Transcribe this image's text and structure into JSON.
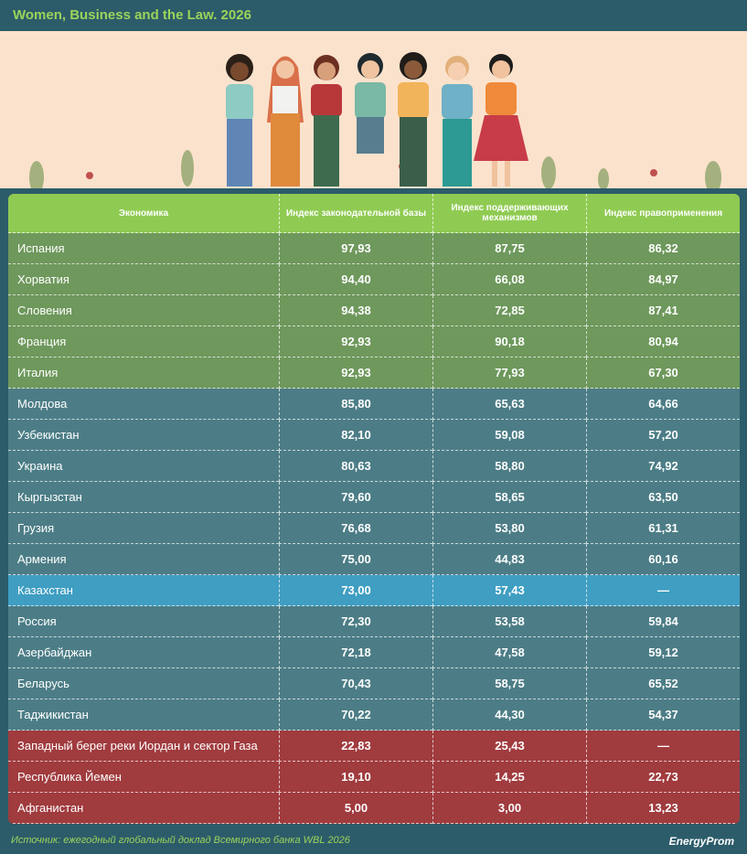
{
  "header": {
    "title": "Women, Business and the Law. 2026"
  },
  "table": {
    "columns": [
      "Экономика",
      "Индекс законодательной базы",
      "Индекс поддерживающих механизмов",
      "Индекс правоприменения"
    ],
    "header_color": "#8fcb52",
    "rows": [
      {
        "color": "#6e985c",
        "cells": [
          "Испания",
          "97,93",
          "87,75",
          "86,32"
        ]
      },
      {
        "color": "#6e985c",
        "cells": [
          "Хорватия",
          "94,40",
          "66,08",
          "84,97"
        ]
      },
      {
        "color": "#6e985c",
        "cells": [
          "Словения",
          "94,38",
          "72,85",
          "87,41"
        ]
      },
      {
        "color": "#6e985c",
        "cells": [
          "Франция",
          "92,93",
          "90,18",
          "80,94"
        ]
      },
      {
        "color": "#6e985c",
        "cells": [
          "Италия",
          "92,93",
          "77,93",
          "67,30"
        ]
      },
      {
        "color": "#4c7d86",
        "cells": [
          "Молдова",
          "85,80",
          "65,63",
          "64,66"
        ]
      },
      {
        "color": "#4c7d86",
        "cells": [
          "Узбекистан",
          "82,10",
          "59,08",
          "57,20"
        ]
      },
      {
        "color": "#4c7d86",
        "cells": [
          "Украина",
          "80,63",
          "58,80",
          "74,92"
        ]
      },
      {
        "color": "#4c7d86",
        "cells": [
          "Кыргызстан",
          "79,60",
          "58,65",
          "63,50"
        ]
      },
      {
        "color": "#4c7d86",
        "cells": [
          "Грузия",
          "76,68",
          "53,80",
          "61,31"
        ]
      },
      {
        "color": "#4c7d86",
        "cells": [
          "Армения",
          "75,00",
          "44,83",
          "60,16"
        ]
      },
      {
        "color": "#3f9ec2",
        "cells": [
          "Казахстан",
          "73,00",
          "57,43",
          "—"
        ]
      },
      {
        "color": "#4c7d86",
        "cells": [
          "Россия",
          "72,30",
          "53,58",
          "59,84"
        ]
      },
      {
        "color": "#4c7d86",
        "cells": [
          "Азербайджан",
          "72,18",
          "47,58",
          "59,12"
        ]
      },
      {
        "color": "#4c7d86",
        "cells": [
          "Беларусь",
          "70,43",
          "58,75",
          "65,52"
        ]
      },
      {
        "color": "#4c7d86",
        "cells": [
          "Таджикистан",
          "70,22",
          "44,30",
          "54,37"
        ]
      },
      {
        "color": "#a03b3e",
        "cells": [
          "Западный берег реки Иордан и сектор Газа",
          "22,83",
          "25,43",
          "—"
        ]
      },
      {
        "color": "#a03b3e",
        "cells": [
          "Республика Йемен",
          "19,10",
          "14,25",
          "22,73"
        ]
      },
      {
        "color": "#a03b3e",
        "cells": [
          "Афганистан",
          "5,00",
          "3,00",
          "13,23"
        ]
      }
    ]
  },
  "footer": {
    "source": "Источник: ежегодный глобальный доклад Всемирного банка WBL 2026",
    "logo": "EnergyProm"
  }
}
